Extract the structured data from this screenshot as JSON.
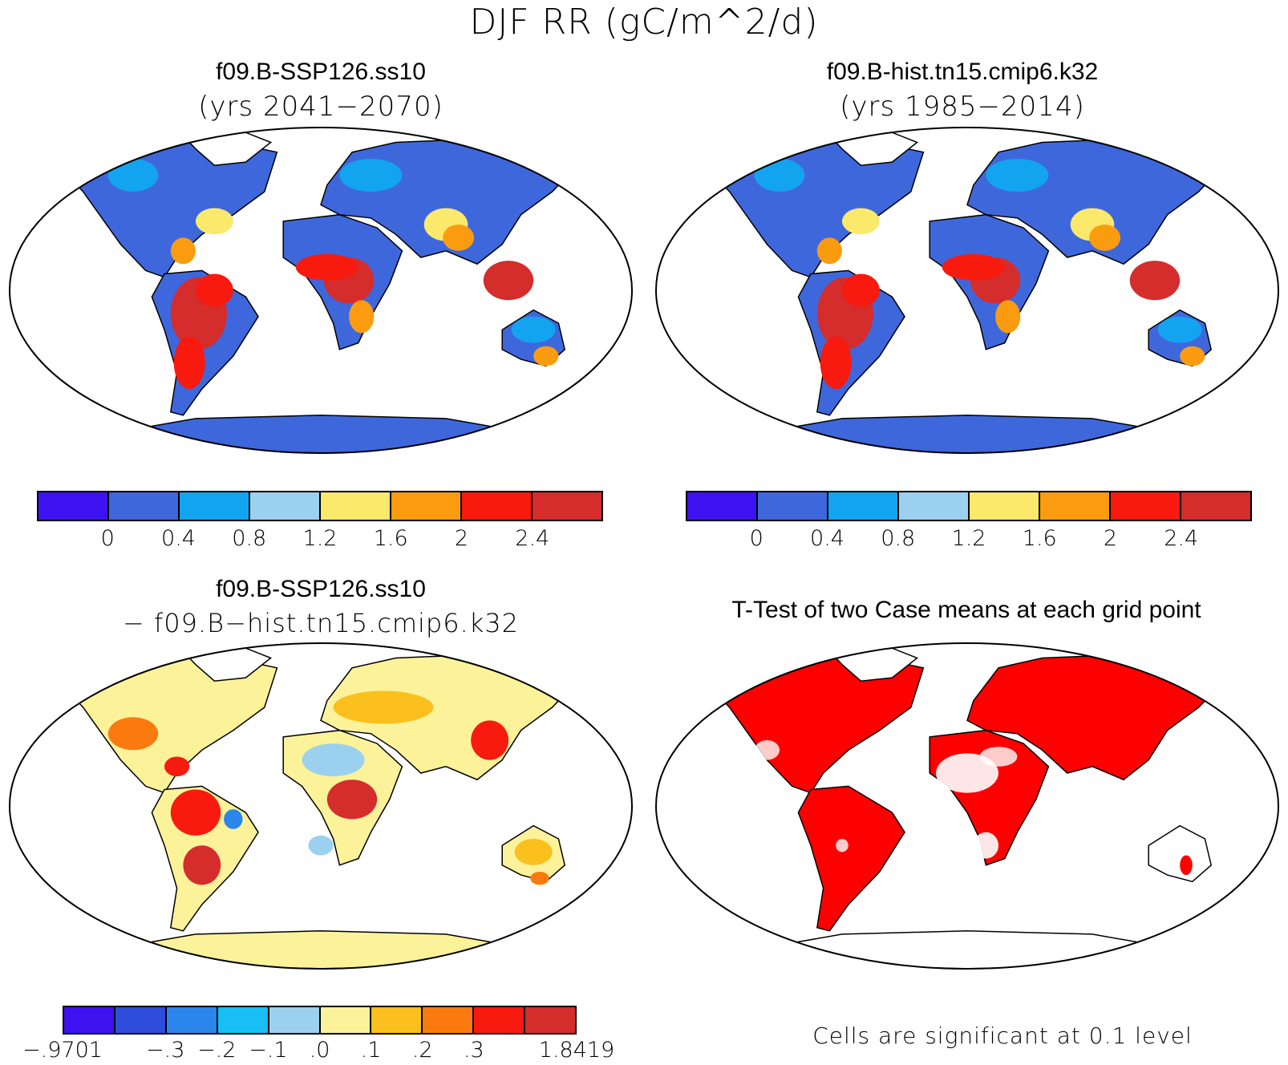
{
  "title": "DJF RR (gC/m^2/d)",
  "panels": [
    {
      "id": "top-left",
      "case": "f09.B-SSP126.ss10",
      "years": "(yrs 2041−2070)"
    },
    {
      "id": "top-right",
      "case": "f09.B-hist.tn15.cmip6.k32",
      "years": "(yrs 1985−2014)"
    },
    {
      "id": "bottom-left",
      "case": "f09.B-SSP126.ss10",
      "years": "− f09.B−hist.tn15.cmip6.k32"
    },
    {
      "id": "bottom-right",
      "case": "T-Test of two Case means at each grid point",
      "years": ""
    }
  ],
  "colorbar_main": {
    "colors": [
      "#3d12f0",
      "#3f67dc",
      "#13a4f0",
      "#9bd1ee",
      "#fbe96b",
      "#fb9c10",
      "#f81a0e",
      "#d52c2c"
    ],
    "labels": [
      "0",
      "0.4",
      "0.8",
      "1.2",
      "1.6",
      "2",
      "2.4"
    ]
  },
  "colorbar_diff": {
    "colors": [
      "#3d12f0",
      "#2e4ddc",
      "#2a86ea",
      "#18bff5",
      "#9bd1ee",
      "#fbf29a",
      "#fbbf1e",
      "#fb7a10",
      "#f81a0e",
      "#d52c2c"
    ],
    "labels": [
      "−.9701",
      "−.3",
      "−.2",
      "−.1",
      ".0",
      ".1",
      ".2",
      ".3",
      "1.8419"
    ]
  },
  "significance_color": "#ff0000",
  "footnote": "Cells are significant at 0.1 level"
}
